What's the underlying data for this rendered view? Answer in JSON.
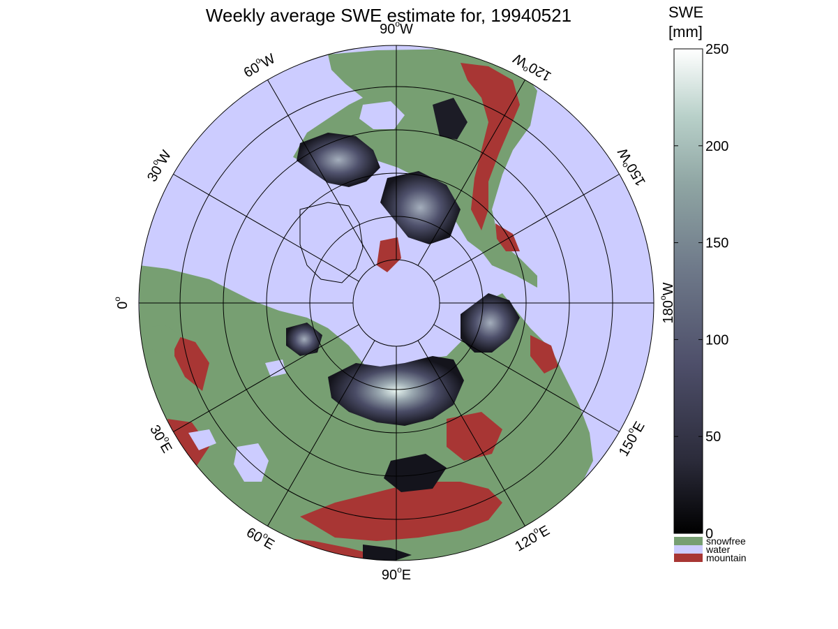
{
  "title": "Weekly average SWE estimate for, 19940521",
  "colorbar": {
    "title_line1": "SWE",
    "title_line2": "[mm]",
    "ticks": [
      "0",
      "50",
      "100",
      "150",
      "200",
      "250"
    ],
    "range_mm": [
      0,
      250
    ],
    "gradient_colors": [
      "#000000",
      "#2b2b3a",
      "#4e4f6a",
      "#6f7a8a",
      "#8fa5a3",
      "#b8d0c9",
      "#ffffff"
    ]
  },
  "legend": [
    {
      "label": "snowfree",
      "color": "#779f72"
    },
    {
      "label": "water",
      "color": "#ccccff"
    },
    {
      "label": "mountain",
      "color": "#a83634"
    }
  ],
  "map": {
    "projection": "north polar azimuthal",
    "longitude_labels": [
      {
        "deg": "90",
        "hemi": "W"
      },
      {
        "deg": "60",
        "hemi": "W"
      },
      {
        "deg": "30",
        "hemi": "W"
      },
      {
        "deg": "0",
        "hemi": ""
      },
      {
        "deg": "30",
        "hemi": "E"
      },
      {
        "deg": "60",
        "hemi": "E"
      },
      {
        "deg": "90",
        "hemi": "E"
      },
      {
        "deg": "120",
        "hemi": "E"
      },
      {
        "deg": "150",
        "hemi": "E"
      },
      {
        "deg": "180",
        "hemi": "W"
      },
      {
        "deg": "150",
        "hemi": "W"
      },
      {
        "deg": "120",
        "hemi": "W"
      }
    ],
    "colors": {
      "water": "#ccccff",
      "snowfree": "#779f72",
      "mountain": "#a83634",
      "snow_dark": "#111118",
      "snow_mid": "#5a5c78",
      "snow_bright": "#dff0ea",
      "grid": "#000000"
    }
  }
}
